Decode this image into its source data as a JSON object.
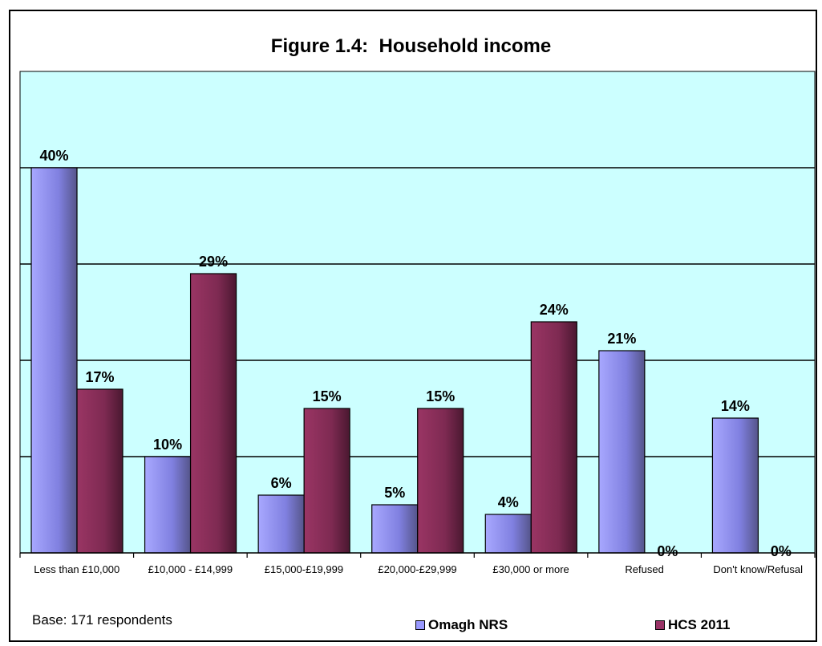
{
  "chart_data": {
    "type": "bar",
    "title": "Figure 1.4:  Household income",
    "categories": [
      "Less than £10,000",
      "£10,000 - £14,999",
      "£15,000-£19,999",
      "£20,000-£29,999",
      "£30,000 or more",
      "Refused",
      "Don't know/Refusal"
    ],
    "series": [
      {
        "name": "Omagh NRS",
        "values": [
          40,
          10,
          6,
          5,
          4,
          21,
          14
        ],
        "labels": [
          "40%",
          "10%",
          "6%",
          "5%",
          "4%",
          "21%",
          "14%"
        ],
        "color": "#9999ff"
      },
      {
        "name": "HCS 2011",
        "values": [
          17,
          29,
          15,
          15,
          24,
          0,
          0
        ],
        "labels": [
          "17%",
          "29%",
          "15%",
          "15%",
          "24%",
          "0%",
          "0%"
        ],
        "color": "#993366"
      }
    ],
    "ylim": [
      0,
      50
    ],
    "grid": true,
    "plot_background": "#ccffff",
    "legend_position": "bottom",
    "note": "Base: 171 respondents"
  }
}
